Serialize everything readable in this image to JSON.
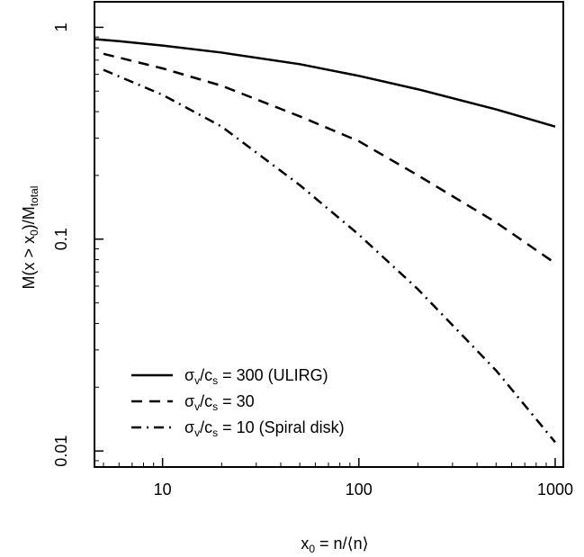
{
  "chart_data": {
    "type": "line",
    "x_scale": "log",
    "y_scale": "log",
    "xlim": [
      4.5,
      1100
    ],
    "ylim": [
      0.0084,
      1.32
    ],
    "xticks": [
      {
        "value": 10,
        "label": "10"
      },
      {
        "value": 100,
        "label": "100"
      },
      {
        "value": 1000,
        "label": "1000"
      }
    ],
    "yticks": [
      {
        "value": 0.01,
        "label": "0.01"
      },
      {
        "value": 0.1,
        "label": "0.1"
      },
      {
        "value": 1,
        "label": "1"
      }
    ],
    "xlabel": {
      "main": "x",
      "sub": "0",
      "rest": " = n/⟨n⟩"
    },
    "ylabel": {
      "pre": "M(x > x",
      "sub1": "0",
      "mid": ")/M",
      "sub2": "total"
    },
    "grid": false,
    "legend_position": "bottom-left",
    "series": [
      {
        "legend": {
          "sigma": "σ",
          "sigma_sub": "v",
          "slash": "/c",
          "c_sub": "s",
          "rest": " = 300 (ULIRG)"
        },
        "style": "solid",
        "x": [
          4.5,
          6,
          10,
          20,
          50,
          100,
          200,
          500,
          1000
        ],
        "y": [
          0.88,
          0.86,
          0.82,
          0.76,
          0.67,
          0.59,
          0.51,
          0.41,
          0.34
        ]
      },
      {
        "legend": {
          "sigma": "σ",
          "sigma_sub": "v",
          "slash": "/c",
          "c_sub": "s",
          "rest": " = 30"
        },
        "style": "dashed",
        "x": [
          5,
          10,
          20,
          50,
          100,
          200,
          500,
          1000
        ],
        "y": [
          0.75,
          0.64,
          0.53,
          0.38,
          0.29,
          0.2,
          0.12,
          0.077
        ]
      },
      {
        "legend": {
          "sigma": "σ",
          "sigma_sub": "v",
          "slash": "/c",
          "c_sub": "s",
          "rest": " = 10 (Spiral disk)"
        },
        "style": "dashdot",
        "x": [
          5,
          10,
          20,
          50,
          100,
          200,
          500,
          1000
        ],
        "y": [
          0.63,
          0.48,
          0.34,
          0.18,
          0.105,
          0.058,
          0.024,
          0.011
        ]
      }
    ]
  }
}
